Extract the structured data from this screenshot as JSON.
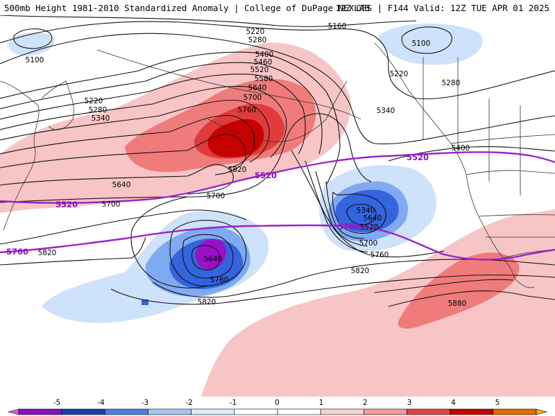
{
  "header": {
    "left": "500mb Height 1981-2010 Standardized Anomaly | College of DuPage NEXLAB",
    "right": "12Z GFS | F144 Valid: 12Z TUE APR 01 2025"
  },
  "colors": {
    "anom_pos_1": "#f7c5c5",
    "anom_pos_2": "#f07b7b",
    "anom_pos_3": "#e03c3c",
    "anom_pos_4": "#c90000",
    "anom_neg_1": "#cfe2fb",
    "anom_neg_2": "#7fa9f0",
    "anom_neg_3": "#3464de",
    "anom_neg_4": "#9a10c8",
    "reference_line": "#9b22c9",
    "coast": "#333333"
  },
  "contour_labels": [
    {
      "id": "5160",
      "text": "5160"
    },
    {
      "id": "5220a",
      "text": "5220"
    },
    {
      "id": "5280a",
      "text": "5280"
    },
    {
      "id": "5400",
      "text": "5400"
    },
    {
      "id": "5460",
      "text": "5460"
    },
    {
      "id": "5520a",
      "text": "5520"
    },
    {
      "id": "5580",
      "text": "5580"
    },
    {
      "id": "5640a",
      "text": "5640"
    },
    {
      "id": "5700a",
      "text": "5700"
    },
    {
      "id": "5760a",
      "text": "5760"
    },
    {
      "id": "5820a",
      "text": "5820"
    },
    {
      "id": "5100a",
      "text": "5100"
    },
    {
      "id": "5100b",
      "text": "5100"
    },
    {
      "id": "5220b",
      "text": "5220"
    },
    {
      "id": "5280b",
      "text": "5280"
    },
    {
      "id": "5340a",
      "text": "5340"
    },
    {
      "id": "5220c",
      "text": "5220"
    },
    {
      "id": "5280c",
      "text": "5280"
    },
    {
      "id": "5340b",
      "text": "5340"
    },
    {
      "id": "5400b",
      "text": "5400"
    },
    {
      "id": "5640b",
      "text": "5640"
    },
    {
      "id": "5700b",
      "text": "5700"
    },
    {
      "id": "5700c",
      "text": "5700"
    },
    {
      "id": "5820b",
      "text": "5820"
    },
    {
      "id": "5340c",
      "text": "5340"
    },
    {
      "id": "5520c",
      "text": "5520"
    },
    {
      "id": "5640c",
      "text": "5640"
    },
    {
      "id": "5700d",
      "text": "5700"
    },
    {
      "id": "5760b",
      "text": "5760"
    },
    {
      "id": "5820c",
      "text": "5820"
    },
    {
      "id": "5640d",
      "text": "5640"
    },
    {
      "id": "5760c",
      "text": "5760"
    },
    {
      "id": "5820d",
      "text": "5820"
    },
    {
      "id": "5880",
      "text": "5880"
    }
  ],
  "reference_labels": [
    {
      "id": "r5520a",
      "text": "5520"
    },
    {
      "id": "r5520b",
      "text": "5520"
    },
    {
      "id": "r5520c",
      "text": "5520"
    },
    {
      "id": "r5760a",
      "text": "5760"
    },
    {
      "id": "r5760b",
      "text": "5760"
    }
  ],
  "colorbar": {
    "ticks": [
      "-5",
      "-4",
      "-3",
      "-2",
      "-1",
      "0",
      "1",
      "2",
      "3",
      "4",
      "5"
    ],
    "colors": [
      "#d35be0",
      "#8a10c0",
      "#1f3fb0",
      "#4a7fe0",
      "#a5c5f3",
      "#dfeafc",
      "#ffffff",
      "#ffffff",
      "#f8d0d0",
      "#f19a9a",
      "#e24646",
      "#c00000",
      "#e86800",
      "#f6b400"
    ]
  }
}
